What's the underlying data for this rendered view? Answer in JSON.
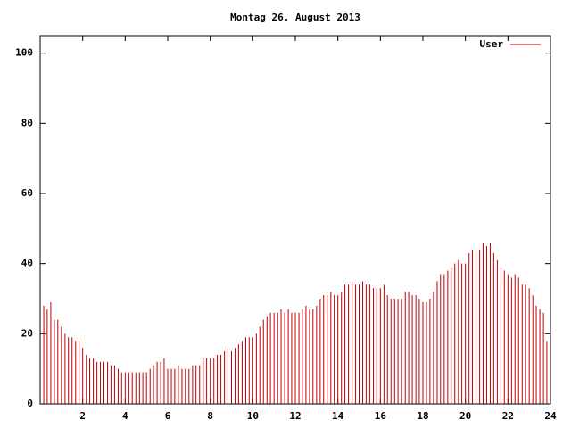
{
  "chart_data": {
    "type": "impulse",
    "title": "Montag 26. August 2013",
    "series": [
      {
        "name": "User",
        "color": "#c00000",
        "x": [
          0,
          0.17,
          0.33,
          0.5,
          0.67,
          0.83,
          1,
          1.17,
          1.33,
          1.5,
          1.67,
          1.83,
          2,
          2.17,
          2.33,
          2.5,
          2.67,
          2.83,
          3,
          3.17,
          3.33,
          3.5,
          3.67,
          3.83,
          4,
          4.17,
          4.33,
          4.5,
          4.67,
          4.83,
          5,
          5.17,
          5.33,
          5.5,
          5.67,
          5.83,
          6,
          6.17,
          6.33,
          6.5,
          6.67,
          6.83,
          7,
          7.17,
          7.33,
          7.5,
          7.67,
          7.83,
          8,
          8.17,
          8.33,
          8.5,
          8.67,
          8.83,
          9,
          9.17,
          9.33,
          9.5,
          9.67,
          9.83,
          10,
          10.17,
          10.33,
          10.5,
          10.67,
          10.83,
          11,
          11.17,
          11.33,
          11.5,
          11.67,
          11.83,
          12,
          12.17,
          12.33,
          12.5,
          12.67,
          12.83,
          13,
          13.17,
          13.33,
          13.5,
          13.67,
          13.83,
          14,
          14.17,
          14.33,
          14.5,
          14.67,
          14.83,
          15,
          15.17,
          15.33,
          15.5,
          15.67,
          15.83,
          16,
          16.17,
          16.33,
          16.5,
          16.67,
          16.83,
          17,
          17.17,
          17.33,
          17.5,
          17.67,
          17.83,
          18,
          18.17,
          18.33,
          18.5,
          18.67,
          18.83,
          19,
          19.17,
          19.33,
          19.5,
          19.67,
          19.83,
          20,
          20.17,
          20.33,
          20.5,
          20.67,
          20.83,
          21,
          21.17,
          21.33,
          21.5,
          21.67,
          21.83,
          22,
          22.17,
          22.33,
          22.5,
          22.67,
          22.83,
          23,
          23.17,
          23.33,
          23.5,
          23.67,
          23.83
        ],
        "values": [
          27,
          28,
          27,
          29,
          24,
          24,
          22,
          20,
          19,
          19,
          18,
          18,
          16,
          14,
          13,
          13,
          12,
          12,
          12,
          12,
          11,
          11,
          10,
          9,
          9,
          9,
          9,
          9,
          9,
          9,
          9,
          10,
          11,
          12,
          12,
          13,
          10,
          10,
          10,
          11,
          10,
          10,
          10,
          11,
          11,
          11,
          13,
          13,
          13,
          13,
          14,
          14,
          15,
          16,
          15,
          16,
          17,
          18,
          19,
          19,
          19,
          20,
          22,
          24,
          25,
          26,
          26,
          26,
          27,
          26,
          27,
          26,
          26,
          26,
          27,
          28,
          27,
          27,
          28,
          30,
          31,
          31,
          32,
          31,
          31,
          32,
          34,
          34,
          35,
          34,
          34,
          35,
          34,
          34,
          33,
          33,
          33,
          34,
          31,
          30,
          30,
          30,
          30,
          32,
          32,
          31,
          31,
          30,
          29,
          29,
          30,
          32,
          35,
          37,
          37,
          38,
          39,
          40,
          41,
          40,
          40,
          43,
          44,
          44,
          44,
          46,
          45,
          46,
          43,
          41,
          39,
          38,
          37,
          36,
          37,
          36,
          34,
          34,
          33,
          31,
          28,
          27,
          26,
          18
        ]
      }
    ],
    "xlim": [
      0,
      24
    ],
    "xticks": [
      2,
      4,
      6,
      8,
      10,
      12,
      14,
      16,
      18,
      20,
      22,
      24
    ],
    "ylim": [
      0,
      105
    ],
    "yticks": [
      0,
      20,
      40,
      60,
      80,
      100
    ]
  }
}
